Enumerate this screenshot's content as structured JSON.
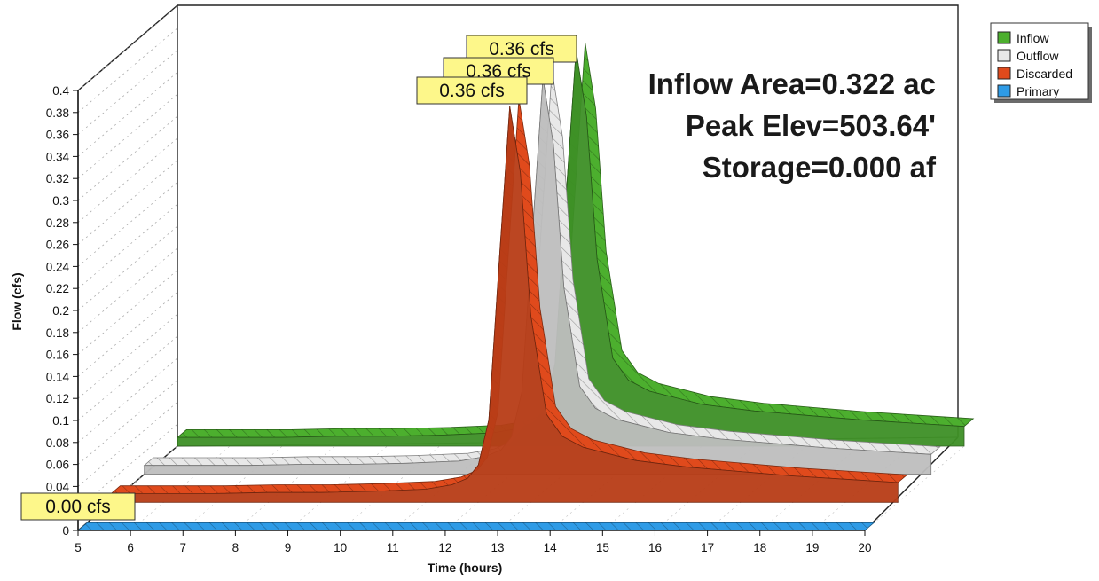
{
  "chart_data": {
    "type": "area",
    "title": "",
    "xlabel": "Time  (hours)",
    "ylabel": "Flow  (cfs)",
    "xlim": [
      5,
      20
    ],
    "ylim": [
      0,
      0.4
    ],
    "x_ticks": [
      "5",
      "6",
      "7",
      "8",
      "9",
      "10",
      "11",
      "12",
      "13",
      "14",
      "15",
      "16",
      "17",
      "18",
      "19",
      "20"
    ],
    "y_ticks": [
      "0",
      "0.02",
      "0.04",
      "0.06",
      "0.08",
      "0.1",
      "0.12",
      "0.14",
      "0.16",
      "0.18",
      "0.2",
      "0.22",
      "0.24",
      "0.26",
      "0.28",
      "0.3",
      "0.32",
      "0.34",
      "0.36",
      "0.38",
      "0.4"
    ],
    "legend_position": "top-right",
    "x": [
      5,
      6,
      7,
      8,
      9,
      10,
      11,
      11.5,
      11.8,
      12.0,
      12.2,
      12.4,
      12.6,
      12.8,
      13.0,
      13.3,
      13.6,
      14.0,
      15,
      16,
      17,
      18,
      19,
      20
    ],
    "series": [
      {
        "name": "Inflow",
        "color": "#4caf2e",
        "values": [
          0.008,
          0.008,
          0.008,
          0.009,
          0.009,
          0.01,
          0.012,
          0.016,
          0.022,
          0.034,
          0.075,
          0.22,
          0.36,
          0.3,
          0.17,
          0.08,
          0.06,
          0.05,
          0.038,
          0.032,
          0.028,
          0.024,
          0.021,
          0.018
        ]
      },
      {
        "name": "Outflow",
        "color": "#e8e8e8",
        "values": [
          0.008,
          0.008,
          0.008,
          0.009,
          0.009,
          0.01,
          0.012,
          0.016,
          0.022,
          0.034,
          0.075,
          0.22,
          0.36,
          0.3,
          0.17,
          0.08,
          0.06,
          0.05,
          0.038,
          0.032,
          0.028,
          0.024,
          0.021,
          0.018
        ]
      },
      {
        "name": "Discarded",
        "color": "#e04a1c",
        "values": [
          0.008,
          0.008,
          0.008,
          0.009,
          0.009,
          0.01,
          0.012,
          0.016,
          0.022,
          0.034,
          0.075,
          0.22,
          0.36,
          0.3,
          0.17,
          0.08,
          0.06,
          0.05,
          0.038,
          0.032,
          0.028,
          0.024,
          0.021,
          0.018
        ]
      },
      {
        "name": "Primary",
        "color": "#2e9be6",
        "values": [
          0,
          0,
          0,
          0,
          0,
          0,
          0,
          0,
          0,
          0,
          0,
          0,
          0,
          0,
          0,
          0,
          0,
          0,
          0,
          0,
          0,
          0,
          0,
          0
        ]
      }
    ],
    "callouts": [
      {
        "series": "Inflow",
        "text": "0.36 cfs"
      },
      {
        "series": "Outflow",
        "text": "0.36 cfs"
      },
      {
        "series": "Discarded",
        "text": "0.36 cfs"
      },
      {
        "series": "Primary",
        "text": "0.00 cfs"
      }
    ],
    "annotations": [
      "Inflow Area=0.322 ac",
      "Peak Elev=503.64'",
      "Storage=0.000 af"
    ]
  }
}
